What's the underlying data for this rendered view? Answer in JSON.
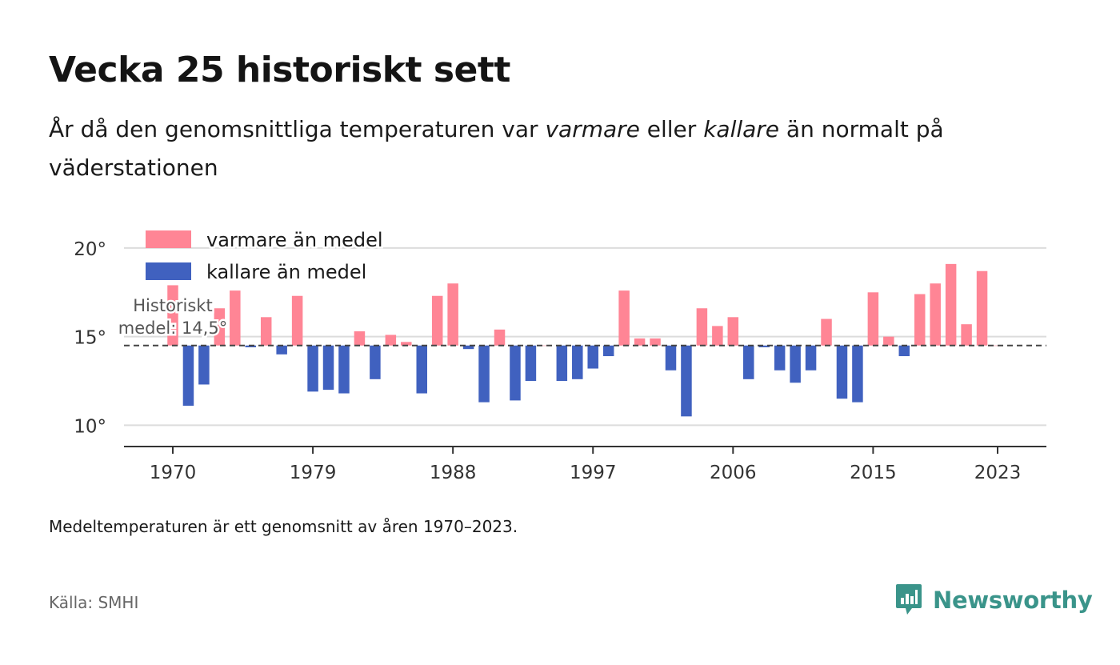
{
  "header": {
    "title": "Vecka 25 historiskt sett",
    "subtitle_part1": "År då den genomsnittliga temperaturen var ",
    "subtitle_warm": "varmare",
    "subtitle_part2": " eller ",
    "subtitle_cold": "kallare",
    "subtitle_part3": " än normalt på väderstationen"
  },
  "footer": {
    "note": "Medeltemperaturen är ett genomsnitt av åren 1970–2023.",
    "source": "Källa: SMHI",
    "brand": "Newsworthy"
  },
  "colors": {
    "warm": "#ff8595",
    "cold": "#4061bf",
    "brand": "#3a948a"
  },
  "chart_data": {
    "type": "bar",
    "baseline": 14.5,
    "baseline_label_line1": "Historiskt",
    "baseline_label_line2": "medel: 14,5°",
    "ylim": [
      8.8,
      20.9
    ],
    "yticks": [
      10,
      15,
      20
    ],
    "ytick_labels": [
      "10°",
      "15°",
      "20°"
    ],
    "xticks": [
      1970,
      1979,
      1988,
      1997,
      2006,
      2015,
      2023
    ],
    "xtick_labels": [
      "1970",
      "1979",
      "1988",
      "1997",
      "2006",
      "2015",
      "2023"
    ],
    "grid": true,
    "legend_position": "top-left",
    "series": [
      {
        "name": "varmare än medel",
        "color": "#ff8595"
      },
      {
        "name": "kallare än medel",
        "color": "#4061bf"
      }
    ],
    "x": [
      1970,
      1971,
      1972,
      1973,
      1974,
      1975,
      1976,
      1977,
      1978,
      1979,
      1980,
      1981,
      1982,
      1983,
      1984,
      1985,
      1986,
      1987,
      1988,
      1989,
      1990,
      1991,
      1992,
      1993,
      1994,
      1995,
      1996,
      1997,
      1998,
      1999,
      2000,
      2001,
      2002,
      2003,
      2004,
      2005,
      2006,
      2007,
      2008,
      2009,
      2010,
      2011,
      2012,
      2013,
      2014,
      2015,
      2016,
      2017,
      2018,
      2019,
      2020,
      2021,
      2022,
      2023
    ],
    "values": [
      17.9,
      11.1,
      12.3,
      16.6,
      17.6,
      14.4,
      16.1,
      14.0,
      17.3,
      11.9,
      12.0,
      11.8,
      15.3,
      12.6,
      15.1,
      14.7,
      11.8,
      17.3,
      18.0,
      14.3,
      11.3,
      15.4,
      11.4,
      12.5,
      14.5,
      12.5,
      12.6,
      13.2,
      13.9,
      17.6,
      14.9,
      14.9,
      13.1,
      10.5,
      16.6,
      15.6,
      16.1,
      12.6,
      14.4,
      13.1,
      12.4,
      13.1,
      16.0,
      11.5,
      11.3,
      17.5,
      15.0,
      13.9,
      17.4,
      18.0,
      19.1,
      15.7,
      18.7,
      14.5
    ]
  }
}
